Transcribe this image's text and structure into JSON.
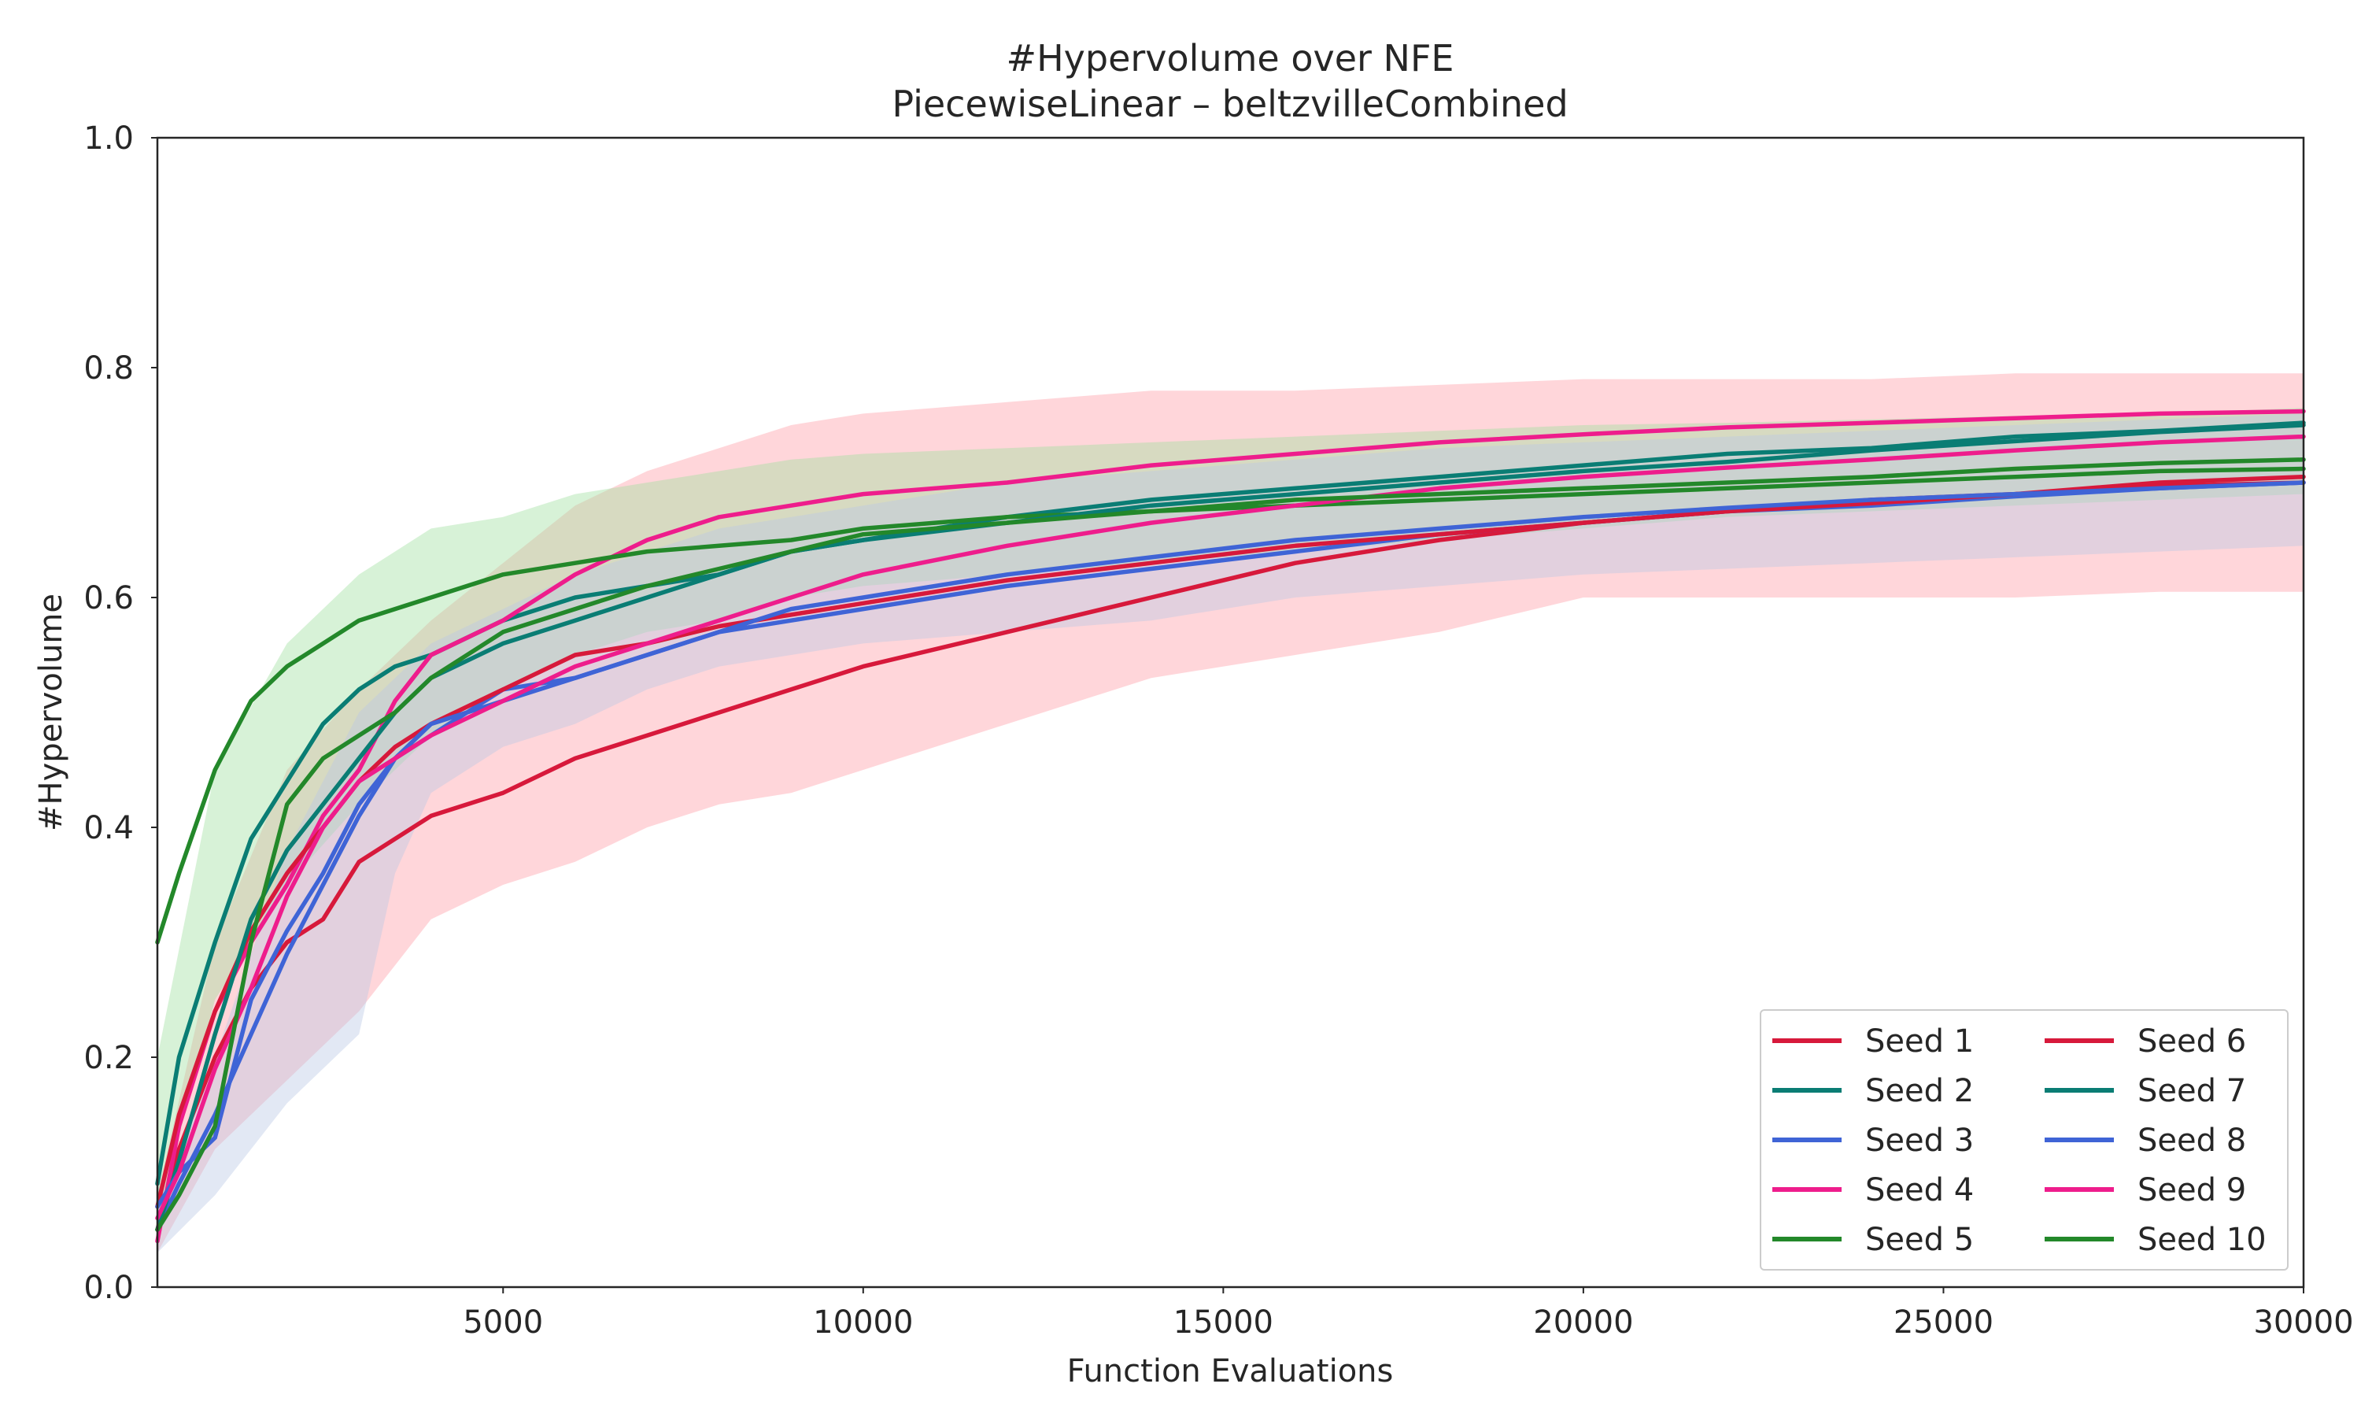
{
  "chart_data": {
    "type": "line",
    "title": "#Hypervolume over NFE",
    "subtitle": "PiecewiseLinear – beltzvilleCombined",
    "xlabel": "Function Evaluations",
    "ylabel": "#Hypervolume",
    "xlim": [
      200,
      30000
    ],
    "ylim": [
      0.0,
      1.0
    ],
    "xticks": [
      5000,
      10000,
      15000,
      20000,
      25000,
      30000
    ],
    "xtick_labels": [
      "5000",
      "10000",
      "15000",
      "20000",
      "25000",
      "30000"
    ],
    "yticks": [
      0.0,
      0.2,
      0.4,
      0.6,
      0.8,
      1.0
    ],
    "ytick_labels": [
      "0.0",
      "0.2",
      "0.4",
      "0.6",
      "0.8",
      "1.0"
    ],
    "grid": false,
    "legend_position": "lower-right",
    "legend_columns": 2,
    "bands": [
      {
        "color": "#ff9ea8",
        "x": [
          200,
          1000,
          2000,
          3000,
          4000,
          5000,
          6000,
          7000,
          8000,
          9000,
          10000,
          12000,
          14000,
          16000,
          18000,
          20000,
          22000,
          24000,
          26000,
          28000,
          30000
        ],
        "lower": [
          0.03,
          0.12,
          0.18,
          0.24,
          0.32,
          0.35,
          0.37,
          0.4,
          0.42,
          0.43,
          0.45,
          0.49,
          0.53,
          0.55,
          0.57,
          0.6,
          0.6,
          0.6,
          0.6,
          0.605,
          0.605
        ],
        "upper": [
          0.08,
          0.3,
          0.45,
          0.52,
          0.58,
          0.63,
          0.68,
          0.71,
          0.73,
          0.75,
          0.76,
          0.77,
          0.78,
          0.78,
          0.785,
          0.79,
          0.79,
          0.79,
          0.795,
          0.795,
          0.795
        ]
      },
      {
        "color": "#9fdf9f",
        "x": [
          200,
          1000,
          2000,
          3000,
          4000,
          5000,
          6000,
          7000,
          8000,
          9000,
          10000,
          12000,
          14000,
          16000,
          18000,
          20000,
          22000,
          24000,
          26000,
          28000,
          30000
        ],
        "lower": [
          0.06,
          0.25,
          0.35,
          0.42,
          0.48,
          0.52,
          0.55,
          0.57,
          0.58,
          0.6,
          0.61,
          0.62,
          0.63,
          0.64,
          0.65,
          0.66,
          0.67,
          0.675,
          0.68,
          0.685,
          0.69
        ],
        "upper": [
          0.2,
          0.45,
          0.56,
          0.62,
          0.66,
          0.67,
          0.69,
          0.7,
          0.71,
          0.72,
          0.725,
          0.73,
          0.735,
          0.74,
          0.745,
          0.75,
          0.752,
          0.755,
          0.758,
          0.76,
          0.765
        ]
      },
      {
        "color": "#b9c7e4",
        "x": [
          200,
          1000,
          2000,
          3000,
          3500,
          4000,
          5000,
          6000,
          7000,
          8000,
          9000,
          10000,
          12000,
          14000,
          16000,
          18000,
          20000,
          22000,
          24000,
          26000,
          28000,
          30000
        ],
        "lower": [
          0.03,
          0.08,
          0.16,
          0.22,
          0.36,
          0.43,
          0.47,
          0.49,
          0.52,
          0.54,
          0.55,
          0.56,
          0.57,
          0.58,
          0.6,
          0.61,
          0.62,
          0.625,
          0.63,
          0.635,
          0.64,
          0.645
        ],
        "upper": [
          0.07,
          0.2,
          0.38,
          0.5,
          0.53,
          0.56,
          0.59,
          0.62,
          0.64,
          0.66,
          0.67,
          0.68,
          0.7,
          0.71,
          0.72,
          0.73,
          0.735,
          0.74,
          0.745,
          0.75,
          0.755,
          0.76
        ]
      }
    ],
    "series": [
      {
        "name": "Seed 1",
        "color": "#d7193b",
        "x": [
          200,
          500,
          1000,
          1500,
          2000,
          2500,
          3000,
          3500,
          4000,
          5000,
          6000,
          7000,
          8000,
          9000,
          10000,
          12000,
          14000,
          16000,
          18000,
          20000,
          22000,
          24000,
          26000,
          28000,
          30000
        ],
        "y": [
          0.05,
          0.12,
          0.2,
          0.26,
          0.3,
          0.32,
          0.37,
          0.39,
          0.41,
          0.43,
          0.46,
          0.48,
          0.5,
          0.52,
          0.54,
          0.57,
          0.6,
          0.63,
          0.65,
          0.665,
          0.675,
          0.685,
          0.69,
          0.7,
          0.705
        ]
      },
      {
        "name": "Seed 2",
        "color": "#0a7d74",
        "x": [
          200,
          500,
          1000,
          1500,
          2000,
          2500,
          3000,
          3500,
          4000,
          5000,
          6000,
          7000,
          8000,
          9000,
          10000,
          12000,
          14000,
          16000,
          18000,
          20000,
          22000,
          24000,
          26000,
          28000,
          30000
        ],
        "y": [
          0.09,
          0.2,
          0.3,
          0.39,
          0.44,
          0.49,
          0.52,
          0.54,
          0.55,
          0.58,
          0.6,
          0.61,
          0.62,
          0.64,
          0.65,
          0.67,
          0.685,
          0.695,
          0.705,
          0.715,
          0.725,
          0.73,
          0.74,
          0.745,
          0.752
        ]
      },
      {
        "name": "Seed 3",
        "color": "#3f64d6",
        "x": [
          200,
          500,
          1000,
          1500,
          2000,
          2500,
          3000,
          3500,
          4000,
          5000,
          6000,
          7000,
          8000,
          9000,
          10000,
          12000,
          14000,
          16000,
          18000,
          20000,
          22000,
          24000,
          26000,
          28000,
          30000
        ],
        "y": [
          0.05,
          0.09,
          0.15,
          0.22,
          0.29,
          0.35,
          0.41,
          0.46,
          0.48,
          0.52,
          0.53,
          0.55,
          0.57,
          0.58,
          0.59,
          0.61,
          0.625,
          0.64,
          0.655,
          0.665,
          0.675,
          0.68,
          0.688,
          0.695,
          0.7
        ]
      },
      {
        "name": "Seed 4",
        "color": "#ee1d8c",
        "x": [
          200,
          500,
          1000,
          1500,
          2000,
          2500,
          3000,
          3500,
          4000,
          5000,
          6000,
          7000,
          8000,
          9000,
          10000,
          12000,
          14000,
          16000,
          18000,
          20000,
          22000,
          24000,
          26000,
          28000,
          30000
        ],
        "y": [
          0.04,
          0.14,
          0.24,
          0.3,
          0.35,
          0.41,
          0.45,
          0.51,
          0.55,
          0.58,
          0.62,
          0.65,
          0.67,
          0.68,
          0.69,
          0.7,
          0.715,
          0.725,
          0.735,
          0.742,
          0.748,
          0.752,
          0.756,
          0.76,
          0.762
        ]
      },
      {
        "name": "Seed 5",
        "color": "#23882a",
        "x": [
          200,
          500,
          1000,
          1500,
          2000,
          2500,
          3000,
          3500,
          4000,
          5000,
          6000,
          7000,
          8000,
          9000,
          10000,
          12000,
          14000,
          16000,
          18000,
          20000,
          22000,
          24000,
          26000,
          28000,
          30000
        ],
        "y": [
          0.3,
          0.36,
          0.45,
          0.51,
          0.54,
          0.56,
          0.58,
          0.59,
          0.6,
          0.62,
          0.63,
          0.64,
          0.645,
          0.65,
          0.66,
          0.67,
          0.675,
          0.68,
          0.685,
          0.69,
          0.695,
          0.7,
          0.705,
          0.71,
          0.712
        ]
      },
      {
        "name": "Seed 6",
        "color": "#d7193b",
        "x": [
          200,
          500,
          1000,
          1500,
          2000,
          2500,
          3000,
          3500,
          4000,
          5000,
          6000,
          7000,
          8000,
          9000,
          10000,
          12000,
          14000,
          16000,
          18000,
          20000,
          22000,
          24000,
          26000,
          28000,
          30000
        ],
        "y": [
          0.07,
          0.15,
          0.24,
          0.31,
          0.36,
          0.4,
          0.44,
          0.47,
          0.49,
          0.52,
          0.55,
          0.56,
          0.575,
          0.585,
          0.595,
          0.615,
          0.63,
          0.645,
          0.655,
          0.665,
          0.675,
          0.682,
          0.69,
          0.697,
          0.7
        ]
      },
      {
        "name": "Seed 7",
        "color": "#0a7d74",
        "x": [
          200,
          500,
          1000,
          1500,
          2000,
          2500,
          3000,
          3500,
          4000,
          5000,
          6000,
          7000,
          8000,
          9000,
          10000,
          12000,
          14000,
          16000,
          18000,
          20000,
          22000,
          24000,
          26000,
          28000,
          30000
        ],
        "y": [
          0.05,
          0.11,
          0.22,
          0.32,
          0.38,
          0.42,
          0.46,
          0.5,
          0.53,
          0.56,
          0.58,
          0.6,
          0.62,
          0.64,
          0.65,
          0.665,
          0.68,
          0.69,
          0.7,
          0.71,
          0.718,
          0.728,
          0.736,
          0.744,
          0.75
        ]
      },
      {
        "name": "Seed 8",
        "color": "#3f64d6",
        "x": [
          200,
          500,
          1000,
          1500,
          2000,
          2500,
          3000,
          3500,
          4000,
          5000,
          6000,
          7000,
          8000,
          9000,
          10000,
          12000,
          14000,
          16000,
          18000,
          20000,
          22000,
          24000,
          26000,
          28000,
          30000
        ],
        "y": [
          0.07,
          0.1,
          0.13,
          0.25,
          0.31,
          0.36,
          0.42,
          0.46,
          0.49,
          0.51,
          0.53,
          0.55,
          0.57,
          0.59,
          0.6,
          0.62,
          0.635,
          0.65,
          0.66,
          0.67,
          0.678,
          0.685,
          0.69,
          0.695,
          0.7
        ]
      },
      {
        "name": "Seed 9",
        "color": "#ee1d8c",
        "x": [
          200,
          500,
          1000,
          1500,
          2000,
          2500,
          3000,
          3500,
          4000,
          5000,
          6000,
          7000,
          8000,
          9000,
          10000,
          12000,
          14000,
          16000,
          18000,
          20000,
          22000,
          24000,
          26000,
          28000,
          30000
        ],
        "y": [
          0.06,
          0.1,
          0.19,
          0.26,
          0.34,
          0.4,
          0.44,
          0.46,
          0.48,
          0.51,
          0.54,
          0.56,
          0.58,
          0.6,
          0.62,
          0.645,
          0.665,
          0.68,
          0.695,
          0.705,
          0.713,
          0.72,
          0.728,
          0.735,
          0.74
        ]
      },
      {
        "name": "Seed 10",
        "color": "#23882a",
        "x": [
          200,
          500,
          1000,
          1500,
          2000,
          2500,
          3000,
          3500,
          4000,
          5000,
          6000,
          7000,
          8000,
          9000,
          10000,
          12000,
          14000,
          16000,
          18000,
          20000,
          22000,
          24000,
          26000,
          28000,
          30000
        ],
        "y": [
          0.05,
          0.08,
          0.14,
          0.3,
          0.42,
          0.46,
          0.48,
          0.5,
          0.53,
          0.57,
          0.59,
          0.61,
          0.625,
          0.64,
          0.655,
          0.665,
          0.675,
          0.685,
          0.69,
          0.695,
          0.7,
          0.705,
          0.712,
          0.717,
          0.72
        ]
      }
    ]
  }
}
